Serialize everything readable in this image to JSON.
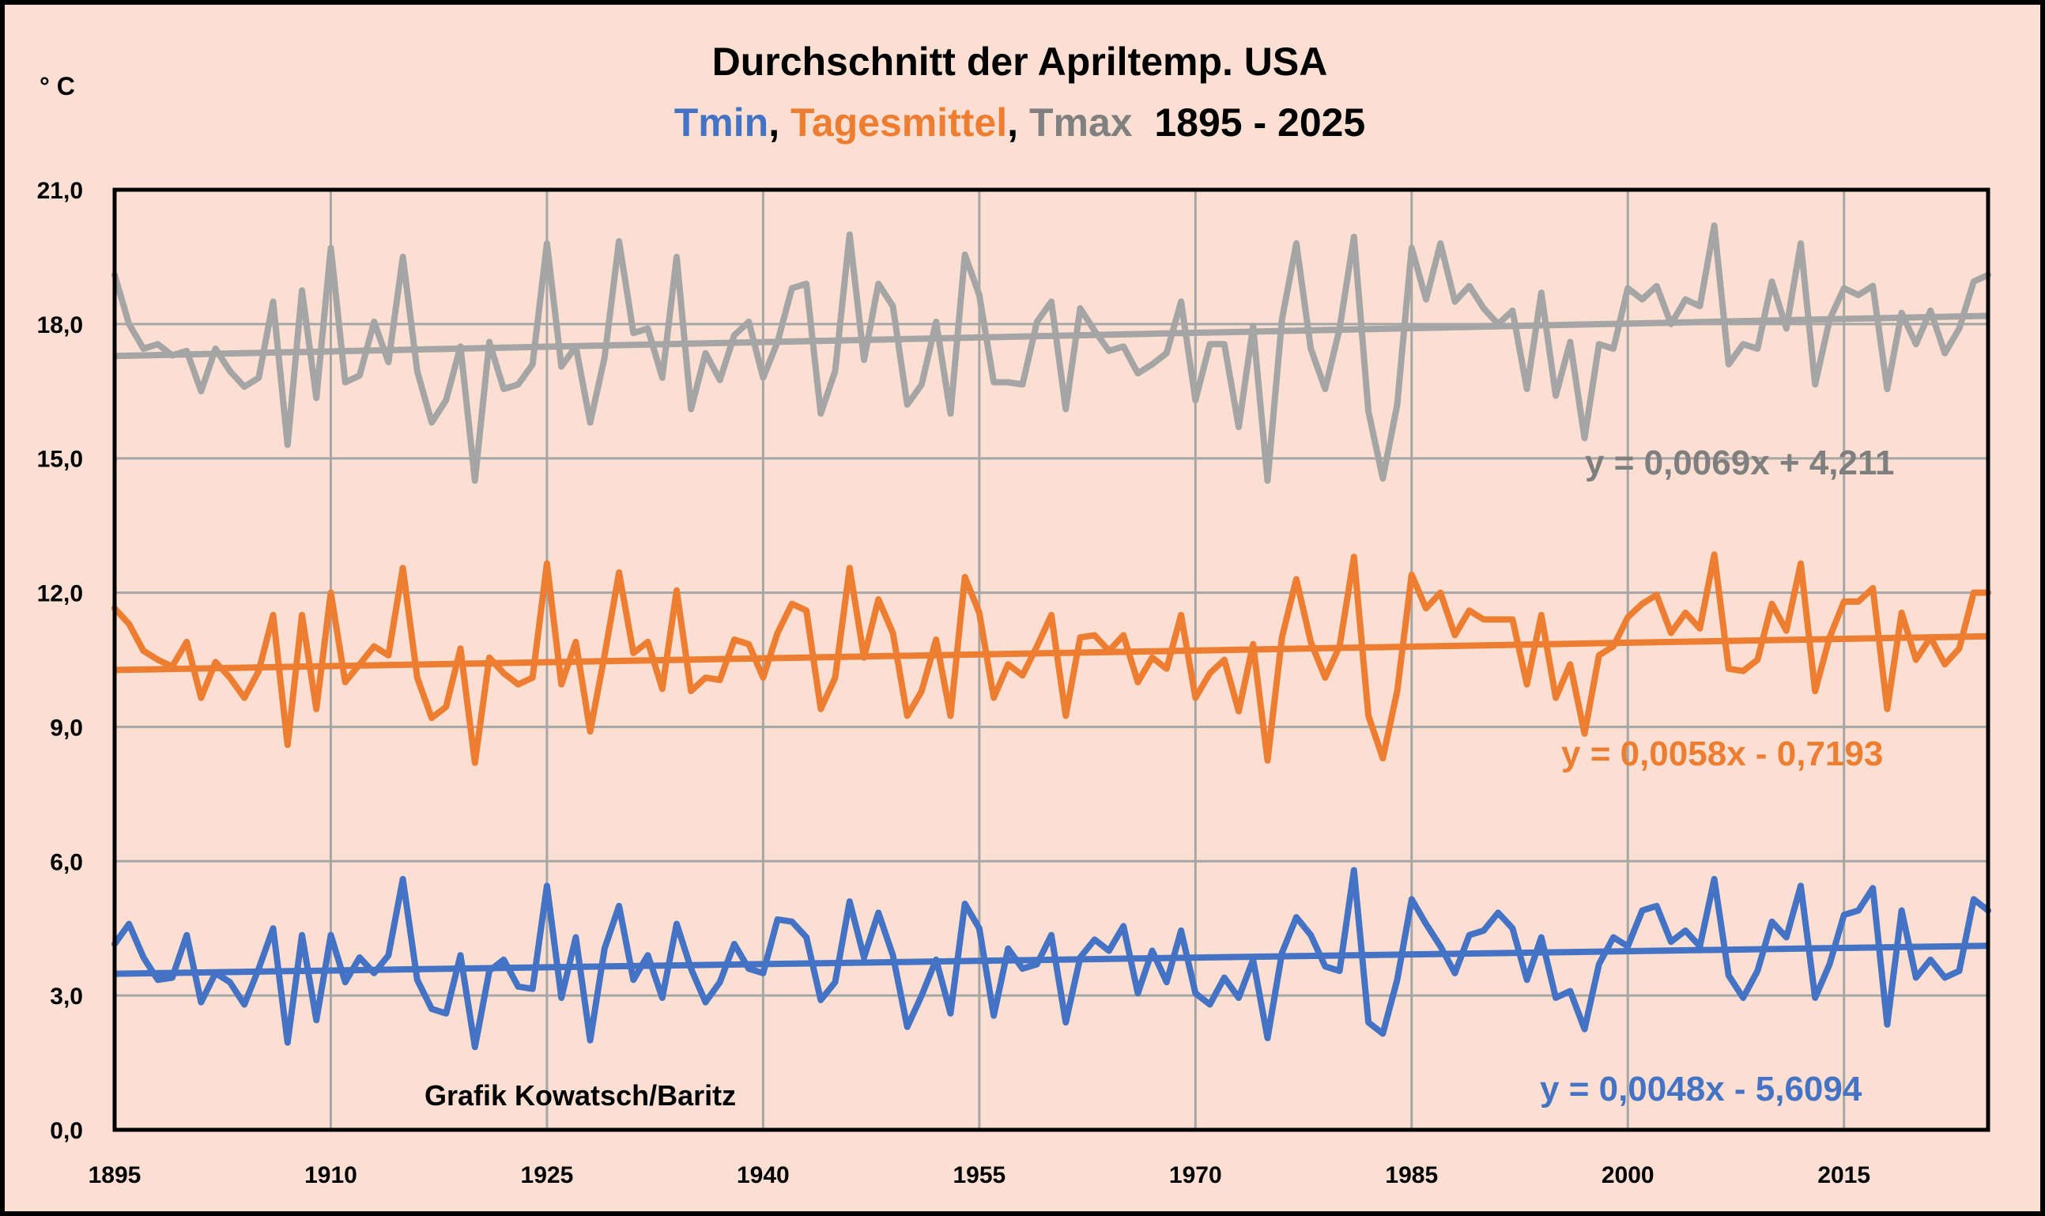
{
  "chart_data": {
    "type": "line",
    "title": "Durchschnitt der Apriltemp. USA",
    "subtitle": {
      "parts": [
        {
          "text": "Tmin",
          "color": "#4472c4"
        },
        {
          "text": ", ",
          "color": "#000000"
        },
        {
          "text": "Tagesmittel",
          "color": "#ed7d31"
        },
        {
          "text": ", ",
          "color": "#000000"
        },
        {
          "text": "Tmax",
          "color": "#808080"
        },
        {
          "text": "  1895 - 2025",
          "color": "#000000"
        }
      ]
    },
    "ylabel": "° C",
    "xlabel": "",
    "xlim": [
      1895,
      2025
    ],
    "ylim": [
      0,
      21
    ],
    "grid": true,
    "x_ticks": [
      1895,
      1910,
      1925,
      1940,
      1955,
      1970,
      1985,
      2000,
      2015
    ],
    "x_tick_labels": [
      "1895",
      "1910",
      "1925",
      "1940",
      "1955",
      "1970",
      "1985",
      "2000",
      "2015"
    ],
    "y_ticks": [
      0,
      3,
      6,
      9,
      12,
      15,
      18,
      21
    ],
    "y_tick_labels": [
      "0,0",
      "3,0",
      "6,0",
      "9,0",
      "12,0",
      "15,0",
      "18,0",
      "21,0"
    ],
    "x_start": 1895,
    "series": [
      {
        "name": "Tmax",
        "color": "#a5a5a5",
        "values": [
          19.1,
          18.0,
          17.45,
          17.55,
          17.3,
          17.4,
          16.5,
          17.45,
          16.95,
          16.6,
          16.8,
          18.5,
          15.3,
          18.75,
          16.35,
          19.7,
          16.7,
          16.85,
          18.05,
          17.15,
          19.5,
          16.95,
          15.8,
          16.3,
          17.5,
          14.5,
          17.6,
          16.55,
          16.65,
          17.1,
          19.8,
          17.05,
          17.5,
          15.8,
          17.25,
          19.85,
          17.8,
          17.9,
          16.8,
          19.5,
          16.1,
          17.35,
          16.75,
          17.75,
          18.05,
          16.8,
          17.6,
          18.8,
          18.9,
          16.0,
          16.95,
          20.0,
          17.2,
          18.9,
          18.4,
          16.2,
          16.65,
          18.05,
          16.0,
          19.55,
          18.65,
          16.7,
          16.7,
          16.65,
          18.05,
          18.5,
          16.1,
          18.35,
          17.85,
          17.4,
          17.5,
          16.9,
          17.1,
          17.35,
          18.5,
          16.3,
          17.55,
          17.55,
          15.7,
          17.95,
          14.5,
          18.1,
          19.8,
          17.45,
          16.55,
          17.9,
          19.95,
          16.05,
          14.55,
          16.2,
          19.7,
          18.55,
          19.8,
          18.5,
          18.85,
          18.35,
          18.0,
          18.3,
          16.55,
          18.7,
          16.4,
          17.6,
          15.45,
          17.55,
          17.45,
          18.8,
          18.55,
          18.85,
          18.0,
          18.55,
          18.4,
          20.2,
          17.1,
          17.55,
          17.45,
          18.95,
          17.9,
          19.8,
          16.65,
          18.1,
          18.8,
          18.65,
          18.85,
          16.55,
          18.25,
          17.55,
          18.3,
          17.35,
          17.9,
          18.95,
          19.1
        ],
        "trend": {
          "slope": 0.0069,
          "intercept": 4.211,
          "label": "y = 0,0069x + 4,211",
          "label_color": "#7f7f7f"
        }
      },
      {
        "name": "Tagesmittel",
        "color": "#ed7d31",
        "values": [
          11.65,
          11.3,
          10.7,
          10.5,
          10.35,
          10.9,
          9.65,
          10.45,
          10.1,
          9.65,
          10.25,
          11.5,
          8.6,
          11.5,
          9.4,
          12.0,
          10.0,
          10.4,
          10.8,
          10.6,
          12.55,
          10.1,
          9.2,
          9.45,
          10.75,
          8.2,
          10.55,
          10.2,
          9.95,
          10.1,
          12.65,
          9.95,
          10.9,
          8.9,
          10.6,
          12.45,
          10.65,
          10.9,
          9.85,
          12.05,
          9.8,
          10.1,
          10.05,
          10.95,
          10.85,
          10.1,
          11.1,
          11.75,
          11.6,
          9.4,
          10.1,
          12.55,
          10.55,
          11.85,
          11.1,
          9.25,
          9.8,
          10.95,
          9.25,
          12.35,
          11.55,
          9.65,
          10.4,
          10.15,
          10.8,
          11.5,
          9.25,
          11.0,
          11.05,
          10.7,
          11.05,
          10.0,
          10.55,
          10.3,
          11.5,
          9.65,
          10.2,
          10.5,
          9.35,
          10.85,
          8.25,
          11.0,
          12.3,
          10.9,
          10.1,
          10.8,
          12.8,
          9.25,
          8.3,
          9.8,
          12.4,
          11.65,
          12.0,
          11.05,
          11.6,
          11.4,
          11.4,
          11.4,
          9.95,
          11.5,
          9.65,
          10.4,
          8.85,
          10.6,
          10.8,
          11.45,
          11.75,
          11.95,
          11.1,
          11.55,
          11.2,
          12.85,
          10.3,
          10.25,
          10.5,
          11.75,
          11.15,
          12.65,
          9.8,
          11.0,
          11.8,
          11.8,
          12.1,
          9.4,
          11.55,
          10.5,
          11.0,
          10.4,
          10.75,
          12.0,
          12.0
        ],
        "trend": {
          "slope": 0.0058,
          "intercept": -0.7193,
          "label": "y = 0,0058x - 0,7193",
          "label_color": "#ed7d31"
        }
      },
      {
        "name": "Tmin",
        "color": "#4472c4",
        "values": [
          4.15,
          4.6,
          3.85,
          3.35,
          3.4,
          4.35,
          2.85,
          3.5,
          3.3,
          2.8,
          3.6,
          4.5,
          1.95,
          4.35,
          2.45,
          4.35,
          3.3,
          3.85,
          3.5,
          3.9,
          5.6,
          3.35,
          2.7,
          2.6,
          3.9,
          1.85,
          3.55,
          3.8,
          3.2,
          3.15,
          5.45,
          2.95,
          4.3,
          2.0,
          4.05,
          5.0,
          3.35,
          3.9,
          2.95,
          4.6,
          3.6,
          2.85,
          3.3,
          4.15,
          3.6,
          3.5,
          4.7,
          4.65,
          4.3,
          2.9,
          3.3,
          5.1,
          3.85,
          4.85,
          3.9,
          2.3,
          3.0,
          3.8,
          2.6,
          5.05,
          4.5,
          2.55,
          4.05,
          3.6,
          3.7,
          4.35,
          2.4,
          3.85,
          4.25,
          4.0,
          4.55,
          3.05,
          4.0,
          3.3,
          4.45,
          3.05,
          2.8,
          3.4,
          2.95,
          3.8,
          2.05,
          3.95,
          4.75,
          4.35,
          3.65,
          3.55,
          5.8,
          2.4,
          2.15,
          3.35,
          5.15,
          4.6,
          4.1,
          3.5,
          4.35,
          4.45,
          4.85,
          4.5,
          3.35,
          4.3,
          2.95,
          3.1,
          2.25,
          3.7,
          4.3,
          4.1,
          4.9,
          5.0,
          4.2,
          4.45,
          4.1,
          5.6,
          3.45,
          2.95,
          3.55,
          4.65,
          4.3,
          5.45,
          2.95,
          3.7,
          4.8,
          4.9,
          5.4,
          2.35,
          4.9,
          3.4,
          3.8,
          3.4,
          3.55,
          5.15,
          4.9
        ],
        "trend": {
          "slope": 0.0048,
          "intercept": -5.6094,
          "label": "y = 0,0048x - 5,6094",
          "label_color": "#4472c4"
        }
      }
    ],
    "annotations": [
      "Grafik Kowatsch/Baritz"
    ]
  }
}
